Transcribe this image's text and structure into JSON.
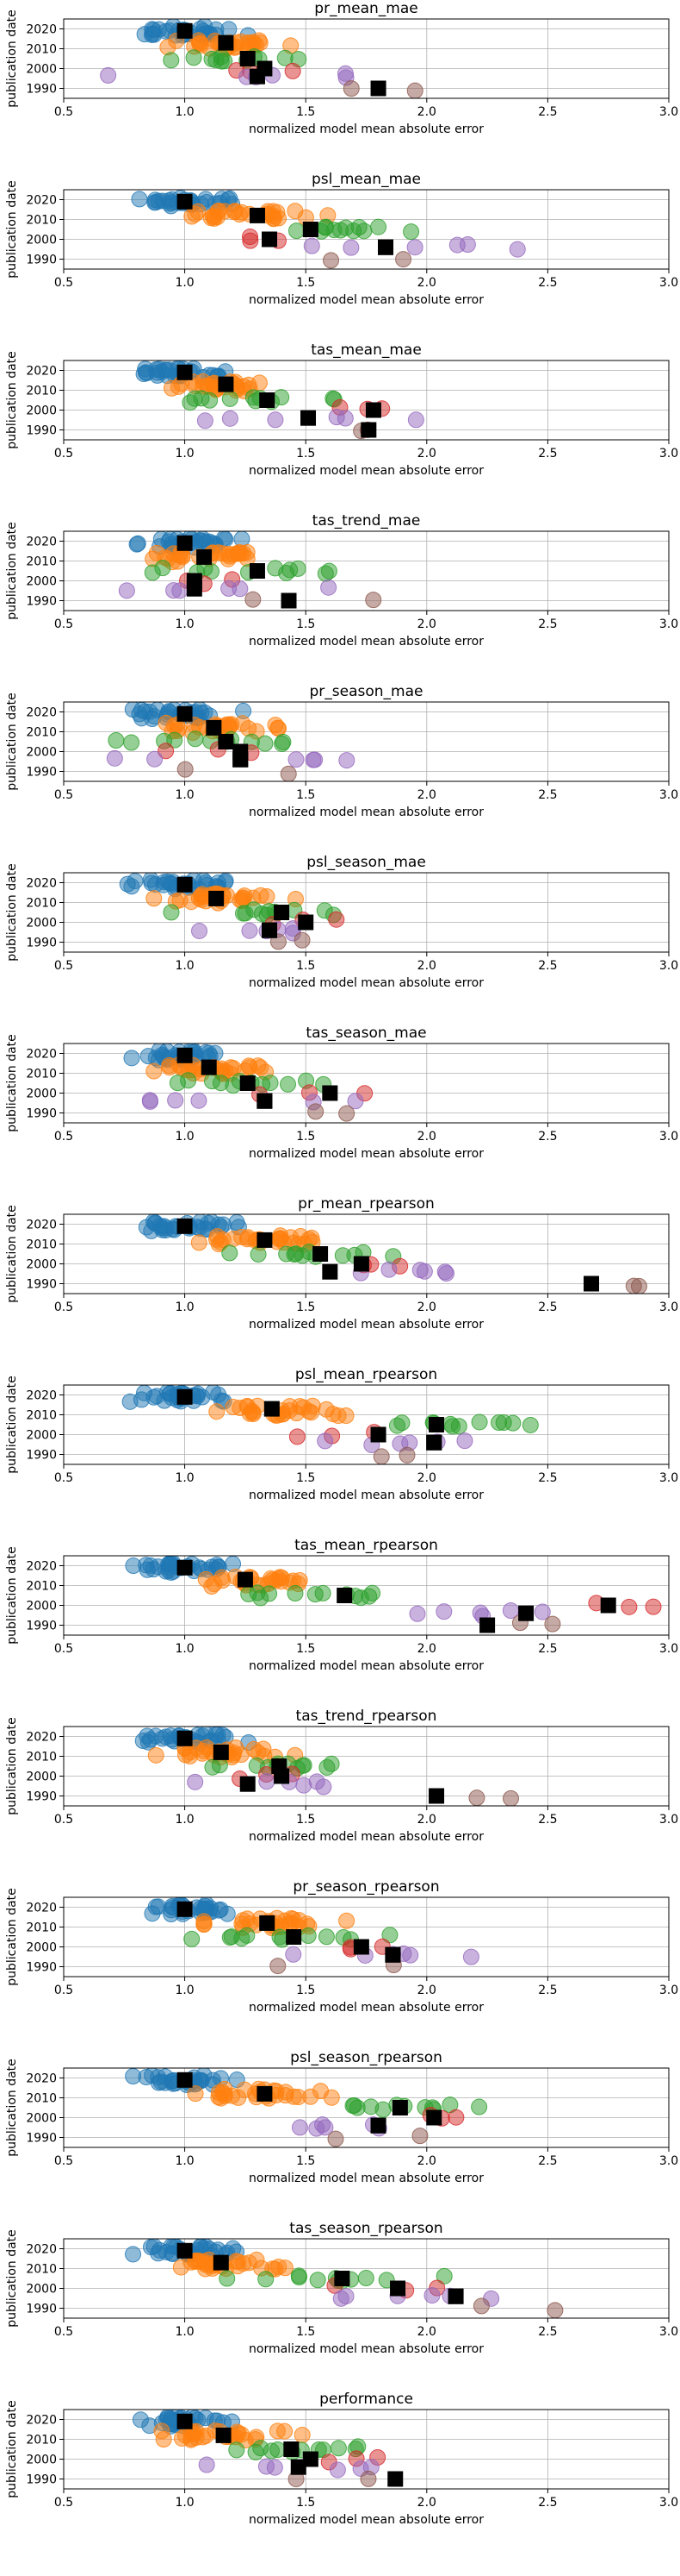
{
  "chart_data": {
    "type": "scatter",
    "layout": "small multiples, one panel per metric, stacked vertically",
    "shared": {
      "xlabel": "normalized model mean absolute error",
      "ylabel": "publication date",
      "xlim": [
        0.5,
        3.0
      ],
      "ylim": [
        1985,
        2025
      ],
      "xticks": [
        "0.5",
        "1.0",
        "1.5",
        "2.0",
        "2.5",
        "3.0"
      ],
      "yticks": [
        "1990",
        "2000",
        "2010",
        "2020"
      ],
      "grid": true,
      "group_colors": [
        "#1f77b4",
        "#ff7f0e",
        "#2ca02c",
        "#d62728",
        "#9467bd",
        "#8c564b"
      ],
      "group_years": [
        2019,
        2012,
        2005,
        2000,
        1996,
        1990
      ],
      "mean_marker": "black square"
    },
    "panels": [
      {
        "title": "pr_mean_mae",
        "means": [
          [
            1.0,
            2019
          ],
          [
            1.17,
            2013
          ],
          [
            1.26,
            2005
          ],
          [
            1.33,
            2000
          ],
          [
            1.3,
            1996
          ],
          [
            1.8,
            1990
          ]
        ]
      },
      {
        "title": "psl_mean_mae",
        "means": [
          [
            1.0,
            2019
          ],
          [
            1.3,
            2012
          ],
          [
            1.52,
            2005
          ],
          [
            1.35,
            2000
          ],
          [
            1.83,
            1996
          ],
          [
            1.83,
            1996
          ]
        ]
      },
      {
        "title": "tas_mean_mae",
        "means": [
          [
            1.0,
            2019
          ],
          [
            1.17,
            2013
          ],
          [
            1.34,
            2005
          ],
          [
            1.78,
            2000
          ],
          [
            1.51,
            1996
          ],
          [
            1.76,
            1990
          ]
        ]
      },
      {
        "title": "tas_trend_mae",
        "means": [
          [
            1.0,
            2019
          ],
          [
            1.08,
            2012
          ],
          [
            1.3,
            2005
          ],
          [
            1.04,
            2000
          ],
          [
            1.04,
            1996
          ],
          [
            1.43,
            1990
          ]
        ]
      },
      {
        "title": "pr_season_mae",
        "means": [
          [
            1.0,
            2019
          ],
          [
            1.12,
            2012
          ],
          [
            1.17,
            2005
          ],
          [
            1.23,
            2000
          ],
          [
            1.23,
            1996
          ],
          [
            1.23,
            1996
          ]
        ]
      },
      {
        "title": "psl_season_mae",
        "means": [
          [
            1.0,
            2019
          ],
          [
            1.13,
            2012
          ],
          [
            1.4,
            2005
          ],
          [
            1.5,
            2000
          ],
          [
            1.35,
            1996
          ],
          [
            1.35,
            1996
          ]
        ]
      },
      {
        "title": "tas_season_mae",
        "means": [
          [
            1.0,
            2019
          ],
          [
            1.1,
            2013
          ],
          [
            1.26,
            2005
          ],
          [
            1.6,
            2000
          ],
          [
            1.33,
            1996
          ],
          [
            1.33,
            1996
          ]
        ]
      },
      {
        "title": "pr_mean_rpearson",
        "means": [
          [
            1.0,
            2019
          ],
          [
            1.33,
            2012
          ],
          [
            1.56,
            2005
          ],
          [
            1.73,
            2000
          ],
          [
            1.6,
            1996
          ],
          [
            2.68,
            1990
          ]
        ]
      },
      {
        "title": "psl_mean_rpearson",
        "means": [
          [
            1.0,
            2019
          ],
          [
            1.36,
            2013
          ],
          [
            2.04,
            2005
          ],
          [
            1.8,
            2000
          ],
          [
            2.03,
            1996
          ],
          [
            2.03,
            1996
          ]
        ]
      },
      {
        "title": "tas_mean_rpearson",
        "means": [
          [
            1.0,
            2019
          ],
          [
            1.25,
            2013
          ],
          [
            1.66,
            2005
          ],
          [
            2.75,
            2000
          ],
          [
            2.41,
            1996
          ],
          [
            2.25,
            1990
          ]
        ]
      },
      {
        "title": "tas_trend_rpearson",
        "means": [
          [
            1.0,
            2019
          ],
          [
            1.15,
            2012
          ],
          [
            1.39,
            2005
          ],
          [
            1.4,
            2000
          ],
          [
            1.26,
            1996
          ],
          [
            2.04,
            1990
          ]
        ]
      },
      {
        "title": "pr_season_rpearson",
        "means": [
          [
            1.0,
            2019
          ],
          [
            1.34,
            2012
          ],
          [
            1.45,
            2005
          ],
          [
            1.73,
            2000
          ],
          [
            1.86,
            1996
          ],
          [
            1.86,
            1996
          ]
        ]
      },
      {
        "title": "psl_season_rpearson",
        "means": [
          [
            1.0,
            2019
          ],
          [
            1.33,
            2012
          ],
          [
            1.89,
            2005
          ],
          [
            2.03,
            2000
          ],
          [
            1.8,
            1996
          ],
          [
            1.8,
            1996
          ]
        ]
      },
      {
        "title": "tas_season_rpearson",
        "means": [
          [
            1.0,
            2019
          ],
          [
            1.15,
            2013
          ],
          [
            1.65,
            2005
          ],
          [
            1.88,
            2000
          ],
          [
            2.12,
            1996
          ],
          [
            2.12,
            1996
          ]
        ]
      },
      {
        "title": "performance",
        "means": [
          [
            1.0,
            2019
          ],
          [
            1.16,
            2012
          ],
          [
            1.44,
            2005
          ],
          [
            1.52,
            2000
          ],
          [
            1.47,
            1996
          ],
          [
            1.87,
            1990
          ]
        ]
      }
    ]
  }
}
